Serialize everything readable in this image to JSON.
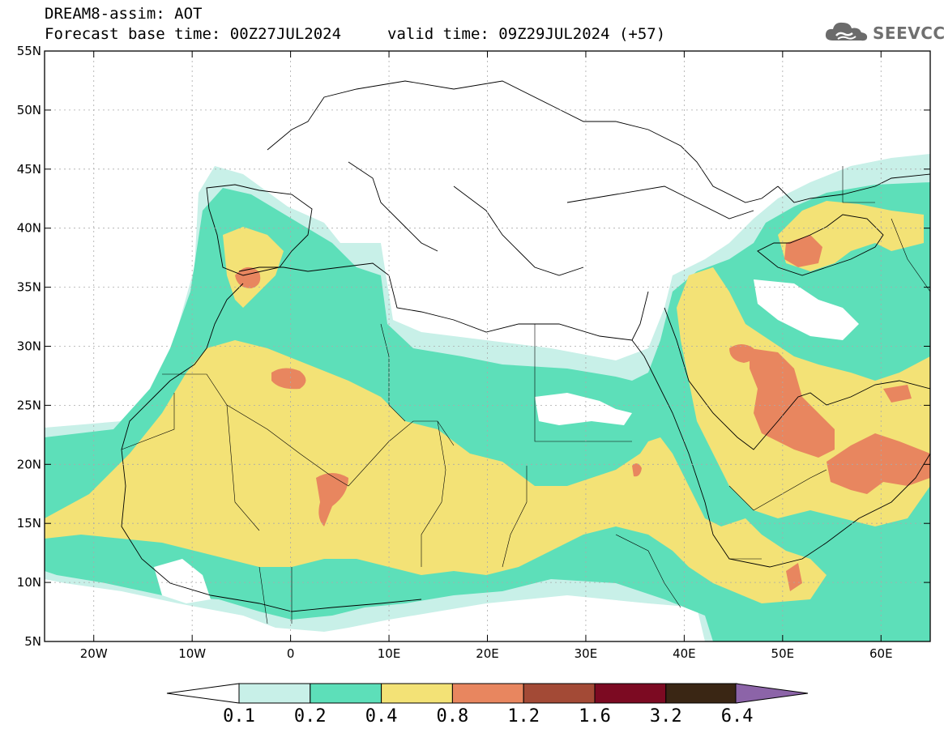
{
  "header": {
    "model_line": "DREAM8-assim: AOT",
    "base_time": "Forecast base time: 00Z27JUL2024",
    "valid_time": "valid time: 09Z29JUL2024 (+57)"
  },
  "logo": {
    "text": "SEEVCCC",
    "icon": "cloud-icon"
  },
  "map": {
    "lon_ticks": [
      "20W",
      "10W",
      "0",
      "10E",
      "20E",
      "30E",
      "40E",
      "50E",
      "60E"
    ],
    "lat_ticks": [
      "55N",
      "50N",
      "45N",
      "40N",
      "35N",
      "30N",
      "25N",
      "20N",
      "15N",
      "10N",
      "5N"
    ],
    "lon_range": [
      -25,
      65
    ],
    "lat_range": [
      5,
      55
    ]
  },
  "colorbar": {
    "labels": [
      "0.1",
      "0.2",
      "0.4",
      "0.8",
      "1.2",
      "1.6",
      "3.2",
      "6.4"
    ],
    "colors": [
      "#c8f0e8",
      "#5ddfb9",
      "#f3e276",
      "#e8865f",
      "#a34a36",
      "#7c0a22",
      "#3a2614",
      "#8c64a8"
    ]
  }
}
